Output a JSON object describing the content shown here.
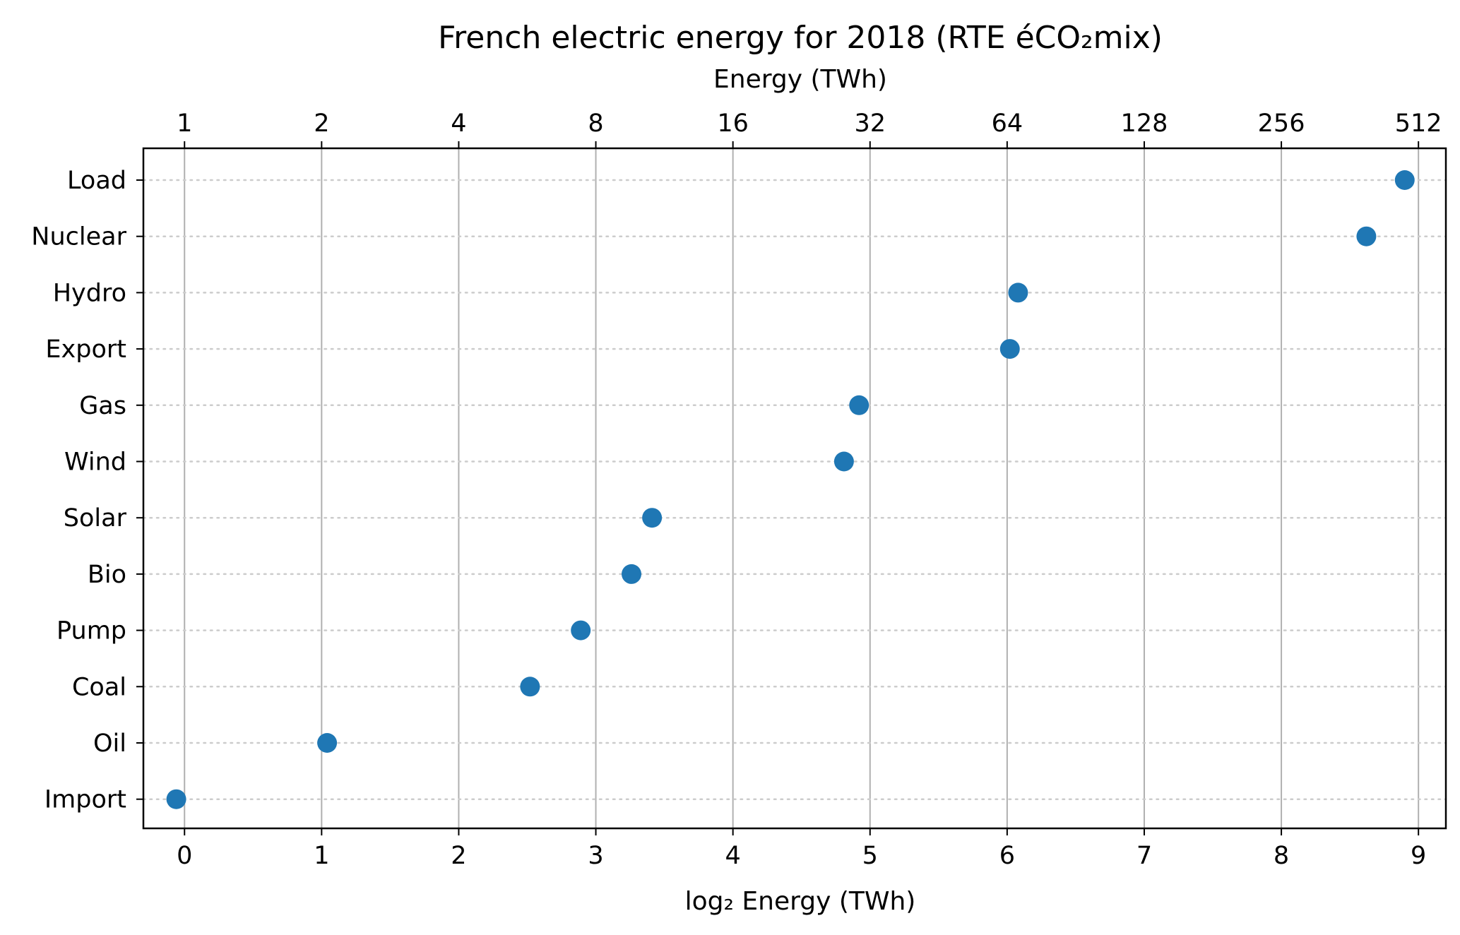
{
  "chart_data": {
    "type": "scatter",
    "title": "French electric energy for 2018 (RTE éCO₂mix)",
    "xlabel": "log₂ Energy (TWh)",
    "top_xlabel": "Energy (TWh)",
    "xlim": [
      -0.3,
      9.2
    ],
    "x_ticks": [
      0,
      1,
      2,
      3,
      4,
      5,
      6,
      7,
      8,
      9
    ],
    "x_tick_labels": [
      "0",
      "1",
      "2",
      "3",
      "4",
      "5",
      "6",
      "7",
      "8",
      "9"
    ],
    "top_tick_labels": [
      "1",
      "2",
      "4",
      "8",
      "16",
      "32",
      "64",
      "128",
      "256",
      "512"
    ],
    "grid": "vertical at ticks (solid gray), horizontal per category (dotted)",
    "marker_color": "#1f77b4",
    "categories": [
      "Load",
      "Nuclear",
      "Hydro",
      "Export",
      "Gas",
      "Wind",
      "Solar",
      "Bio",
      "Pump",
      "Coal",
      "Oil",
      "Import"
    ],
    "values": [
      8.9,
      8.62,
      6.08,
      6.02,
      4.92,
      4.81,
      3.41,
      3.26,
      2.89,
      2.52,
      1.04,
      -0.06
    ]
  }
}
